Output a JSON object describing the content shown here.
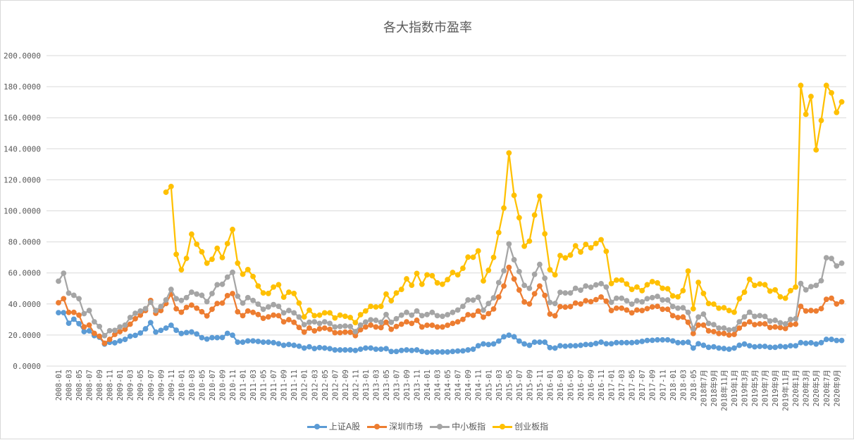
{
  "chart_data": {
    "type": "line",
    "title": "各大指数市盈率",
    "xlabel": "",
    "ylabel": "",
    "ylim": [
      0,
      200
    ],
    "y_ticks": [
      "0.0000",
      "20.0000",
      "40.0000",
      "60.0000",
      "80.0000",
      "100.0000",
      "120.0000",
      "140.0000",
      "160.0000",
      "180.0000",
      "200.0000"
    ],
    "x_frequency": "monthly",
    "x_range": [
      "2008-01",
      "2020-10"
    ],
    "x_tick_labels": [
      "2008-01",
      "2008-03",
      "2008-05",
      "2008-07",
      "2008-09",
      "2008-11",
      "2009-01",
      "2009-03",
      "2009-05",
      "2009-07",
      "2009-09",
      "2009-11",
      "2010-01",
      "2010-03",
      "2010-05",
      "2010-07",
      "2010-09",
      "2010-11",
      "2011-01",
      "2011-03",
      "2011-05",
      "2011-07",
      "2011-09",
      "2011-11",
      "2012-01",
      "2012-03",
      "2012-05",
      "2012-07",
      "2012-09",
      "2012-11",
      "2013-01",
      "2013-03",
      "2013-05",
      "2013-07",
      "2013-09",
      "2013-11",
      "2014-01",
      "2014-03",
      "2014-05",
      "2014-07",
      "2014-09",
      "2014-11",
      "2015-01",
      "2015-03",
      "2015-05",
      "2015-07",
      "2015-09",
      "2015-11",
      "2016-01",
      "2016-03",
      "2016-05",
      "2016-07",
      "2016-09",
      "2016-11",
      "2017-01",
      "2017-03",
      "2017-05",
      "2017-07",
      "2017-09",
      "2017-11",
      "2018-01",
      "2018-03",
      "2018-05",
      "2018年7月",
      "2018年9月",
      "2018年11月",
      "2019年1月",
      "2019年3月",
      "2019年5月",
      "2019年7月",
      "2019年9月",
      "2019年11月",
      "2020年1月",
      "2020年3月",
      "2020年5月",
      "2020年7月",
      "2020年9月"
    ],
    "grid": true,
    "legend_position": "bottom",
    "series": [
      {
        "name": "上证A股",
        "color": "#5B9BD5",
        "values": [
          34.4,
          34.4,
          27.6,
          30.2,
          27.3,
          22.2,
          22.7,
          19.6,
          18.6,
          14.2,
          15.3,
          15,
          16.2,
          17.2,
          19.2,
          19.8,
          21.3,
          24,
          28,
          21.9,
          23,
          24.5,
          26.3,
          23.1,
          21,
          21.6,
          22,
          20.7,
          18.3,
          17.4,
          18.3,
          18.3,
          18.4,
          21.1,
          19.9,
          15.4,
          15.4,
          16.2,
          16.2,
          15.9,
          15.4,
          15.4,
          15.1,
          14.4,
          13.4,
          13.9,
          13.4,
          12.8,
          11.6,
          12.4,
          11.3,
          11.9,
          11.6,
          11.2,
          10.4,
          10.4,
          10.4,
          10.4,
          10.1,
          10.9,
          11.6,
          11.6,
          10.9,
          10.9,
          11.2,
          9.4,
          9.4,
          10.1,
          10.4,
          10.1,
          10.4,
          9.4,
          8.9,
          9.1,
          9.1,
          9.1,
          9.1,
          9.4,
          9.7,
          9.8,
          10.4,
          10.9,
          13.1,
          14.3,
          13.9,
          14.3,
          16.1,
          18.9,
          19.9,
          18.9,
          16.1,
          14.3,
          13.4,
          15.4,
          15.4,
          15.4,
          11.9,
          11.6,
          13.1,
          12.8,
          13.1,
          13.1,
          13.4,
          13.9,
          13.9,
          14.6,
          15.4,
          14.4,
          14.4,
          15.1,
          15.1,
          15.1,
          15.1,
          15.4,
          15.9,
          16.5,
          16.6,
          16.9,
          16.9,
          16.9,
          16.2,
          15.1,
          15.1,
          15.4,
          11.6,
          14.4,
          13.4,
          12.1,
          12.4,
          11.6,
          11.3,
          10.9,
          11.6,
          13.4,
          14.2,
          13.1,
          12.4,
          12.7,
          12.7,
          12.1,
          12.1,
          12.7,
          12.4,
          13.1,
          13.1,
          15.1,
          14.7,
          15,
          14.2,
          15.1,
          17.2,
          17.2,
          16.5,
          16.5
        ]
      },
      {
        "name": "深圳市场",
        "color": "#ED7D31",
        "values": [
          40.8,
          43.4,
          34.6,
          34.6,
          32.8,
          25.2,
          26.4,
          21.1,
          19.2,
          14.7,
          17.2,
          20.4,
          22.2,
          23.7,
          27,
          30.5,
          32.8,
          35.8,
          42.3,
          34,
          35.8,
          40.3,
          46.4,
          36.9,
          34.7,
          37.8,
          39.3,
          37.3,
          35,
          32.3,
          36.6,
          40.3,
          40.6,
          45.4,
          46.7,
          35,
          32.5,
          35.5,
          34.6,
          33.2,
          30.8,
          31.7,
          32.8,
          32.5,
          28.5,
          29.9,
          28.2,
          24.9,
          21.9,
          24.5,
          22.7,
          24,
          24.5,
          23.7,
          21.5,
          21.5,
          21.9,
          21.8,
          19.6,
          23.4,
          25.2,
          26.4,
          25.2,
          24.8,
          28.2,
          23.7,
          25.5,
          27,
          28.5,
          27.5,
          29.5,
          25.2,
          26.3,
          26.3,
          25.2,
          25.2,
          26.3,
          27.5,
          28.5,
          30.1,
          33.1,
          32.7,
          35.4,
          31.5,
          33.8,
          36.8,
          44.5,
          51.6,
          63.6,
          56.1,
          49,
          41.3,
          40,
          46.6,
          51.6,
          45.5,
          33.5,
          32.4,
          38.3,
          38,
          38.3,
          40.6,
          40,
          42.1,
          41.5,
          42.8,
          44.5,
          41.8,
          35.8,
          37.3,
          37.3,
          36.1,
          34.3,
          36.1,
          35.8,
          37,
          38.1,
          38.5,
          36.6,
          36.6,
          32.5,
          31.3,
          31.6,
          28.2,
          21,
          26.4,
          26.4,
          22.7,
          22.2,
          21,
          21,
          20,
          20.4,
          24.5,
          27,
          28.5,
          26.7,
          27.2,
          27.2,
          24.9,
          25.2,
          24.8,
          24.2,
          26.7,
          27,
          38.5,
          35.5,
          35.8,
          35.5,
          37,
          43,
          43.7,
          40,
          41.4
        ]
      },
      {
        "name": "中小板指",
        "color": "#A5A5A5",
        "values": [
          54.7,
          59.8,
          47,
          45.6,
          43.4,
          33.8,
          35.8,
          28.5,
          25.5,
          19.6,
          22.8,
          23,
          25.2,
          26.4,
          31.3,
          34,
          35.5,
          37,
          41.1,
          35.8,
          38.4,
          42.6,
          49.4,
          43.4,
          42.3,
          44.1,
          47.6,
          46.4,
          45.6,
          41.5,
          46.7,
          52.4,
          52.7,
          57.3,
          60.4,
          45,
          40.6,
          44.1,
          42.3,
          39.9,
          36.6,
          38.1,
          39.6,
          38.5,
          34.3,
          35.8,
          34.3,
          31.6,
          26.7,
          28.2,
          28.5,
          27.5,
          28.5,
          27.5,
          25.2,
          25.5,
          25.8,
          25.5,
          22.2,
          26.4,
          28.4,
          29.8,
          29.5,
          28.2,
          33.2,
          28.2,
          30.5,
          32.8,
          34.6,
          32.8,
          35.5,
          32.5,
          33.2,
          34.6,
          32.5,
          32.1,
          33.1,
          34.6,
          36.1,
          38.5,
          42.6,
          42.5,
          44.3,
          36,
          40.3,
          44,
          53.8,
          61.4,
          78.7,
          68.5,
          60.9,
          52,
          50.1,
          59.1,
          65.5,
          56.6,
          41,
          40.3,
          47.5,
          47.1,
          47.1,
          50.1,
          48.9,
          51.6,
          50.8,
          52.3,
          53.1,
          50.9,
          41.1,
          43.7,
          43.7,
          42.1,
          39.9,
          42.1,
          41.4,
          43.4,
          44.1,
          44.9,
          42.6,
          42.6,
          38.4,
          37.3,
          37.6,
          34.6,
          24,
          31.6,
          33.5,
          27.5,
          26.7,
          24.5,
          24.5,
          23.3,
          23.7,
          28.5,
          31.7,
          34.7,
          32,
          32.5,
          32,
          29,
          29.5,
          27.9,
          27.2,
          30.1,
          30.5,
          53.2,
          49.1,
          51.2,
          52,
          55,
          69.8,
          69.3,
          64.5,
          66.3
        ]
      },
      {
        "name": "创业板指",
        "color": "#FFC000",
        "values": [
          null,
          null,
          null,
          null,
          null,
          null,
          null,
          null,
          null,
          null,
          null,
          null,
          null,
          null,
          null,
          null,
          null,
          null,
          null,
          null,
          null,
          112,
          115.7,
          72,
          62,
          69.4,
          85,
          78.5,
          73.6,
          66.3,
          68.8,
          75.9,
          69.9,
          78.9,
          88,
          66.3,
          59.2,
          62.2,
          57.7,
          51.6,
          47.1,
          46.8,
          50.9,
          52.4,
          44.4,
          47.6,
          46.8,
          40.6,
          31.7,
          36,
          32.5,
          32.8,
          34.3,
          34.3,
          31,
          32.8,
          32.1,
          31.3,
          28,
          33.1,
          35.5,
          38.5,
          38.1,
          38.5,
          46.4,
          42.1,
          47.1,
          49.4,
          56.2,
          52.1,
          59.7,
          52.7,
          58.8,
          58.2,
          53.6,
          52.7,
          55.7,
          60.3,
          58.8,
          63,
          70.2,
          70.1,
          74.2,
          54.9,
          61.7,
          70,
          86,
          101.8,
          137.3,
          110,
          95.6,
          77.2,
          80.5,
          97.3,
          109.4,
          85.2,
          62.1,
          58.8,
          71.2,
          69.7,
          71.5,
          77.5,
          73.5,
          78.4,
          76.2,
          79,
          81.4,
          73.9,
          53.2,
          55.4,
          55.4,
          52.9,
          49.4,
          50.9,
          48.6,
          52.4,
          54.4,
          53.6,
          50.1,
          49.8,
          45.2,
          44.6,
          48.6,
          61.2,
          36.9,
          53.9,
          46.8,
          40.3,
          39.9,
          37.3,
          37.6,
          35.8,
          34.7,
          43.4,
          47.6,
          55.9,
          52,
          52.9,
          52.4,
          48.3,
          49.1,
          44.6,
          43.7,
          48.6,
          50.9,
          180.8,
          162.2,
          173.7,
          139.3,
          158.2,
          180.8,
          176,
          163.4,
          170.2
        ]
      }
    ]
  }
}
